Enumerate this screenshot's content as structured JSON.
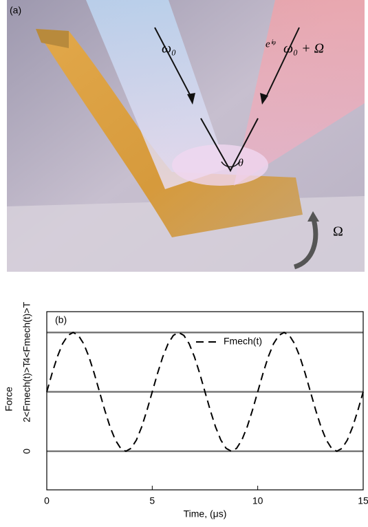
{
  "panel_a": {
    "label": "(a)",
    "beam_in": "ω₀",
    "phase": "eⁱᵠ",
    "beam_shifted": "ω₀ + Ω",
    "angle": "θ",
    "rotation": "Ω"
  },
  "chart_data": {
    "type": "line",
    "panel_label": "(b)",
    "xlabel": "Time, (μs)",
    "ylabel": "Force",
    "x": [
      0,
      0.25,
      0.5,
      0.75,
      1,
      1.25,
      1.5,
      1.75,
      2,
      2.25,
      2.5,
      2.75,
      3,
      3.25,
      3.5,
      3.75,
      4,
      4.25,
      4.5,
      4.75,
      5,
      5.25,
      5.5,
      5.75,
      6,
      6.25,
      6.5,
      6.75,
      7,
      7.25,
      7.5,
      7.75,
      8,
      8.25,
      8.5,
      8.75,
      9,
      9.25,
      9.5,
      9.75,
      10,
      10.25,
      10.5,
      10.75,
      11,
      11.25,
      11.5,
      11.75,
      12,
      12.25,
      12.5,
      12.75,
      13,
      13.25,
      13.5,
      13.75,
      14,
      14.25,
      14.5,
      14.75,
      15
    ],
    "series": [
      {
        "name": "Fmech(t)",
        "color": "#000000",
        "values": [
          2,
          2.62,
          3.18,
          3.62,
          3.9,
          4,
          3.9,
          3.62,
          3.18,
          2.62,
          2,
          1.38,
          0.82,
          0.38,
          0.1,
          0,
          0.1,
          0.38,
          0.82,
          1.38,
          2,
          2.62,
          3.18,
          3.62,
          3.9,
          4,
          3.9,
          3.62,
          3.18,
          2.62,
          2,
          1.38,
          0.82,
          0.38,
          0.1,
          0,
          0.1,
          0.38,
          0.82,
          1.38,
          2,
          2.62,
          3.18,
          3.62,
          3.9,
          4,
          3.9,
          3.62,
          3.18,
          2.62,
          2,
          1.38,
          0.82,
          0.38,
          0.1,
          0,
          0.1,
          0.38,
          0.82,
          1.38,
          2
        ]
      }
    ],
    "xlim": [
      0,
      15
    ],
    "xticks": [
      0,
      5,
      10,
      15
    ],
    "ylim": [
      -1.3,
      4.7
    ],
    "yticks": [
      0,
      {
        "value": 2,
        "label": "2<Fmech(t)>T"
      },
      {
        "value": 4,
        "label": "4<Fmech(t)>T"
      }
    ],
    "grid": true,
    "grid_color": "#777777",
    "dashed": true
  }
}
